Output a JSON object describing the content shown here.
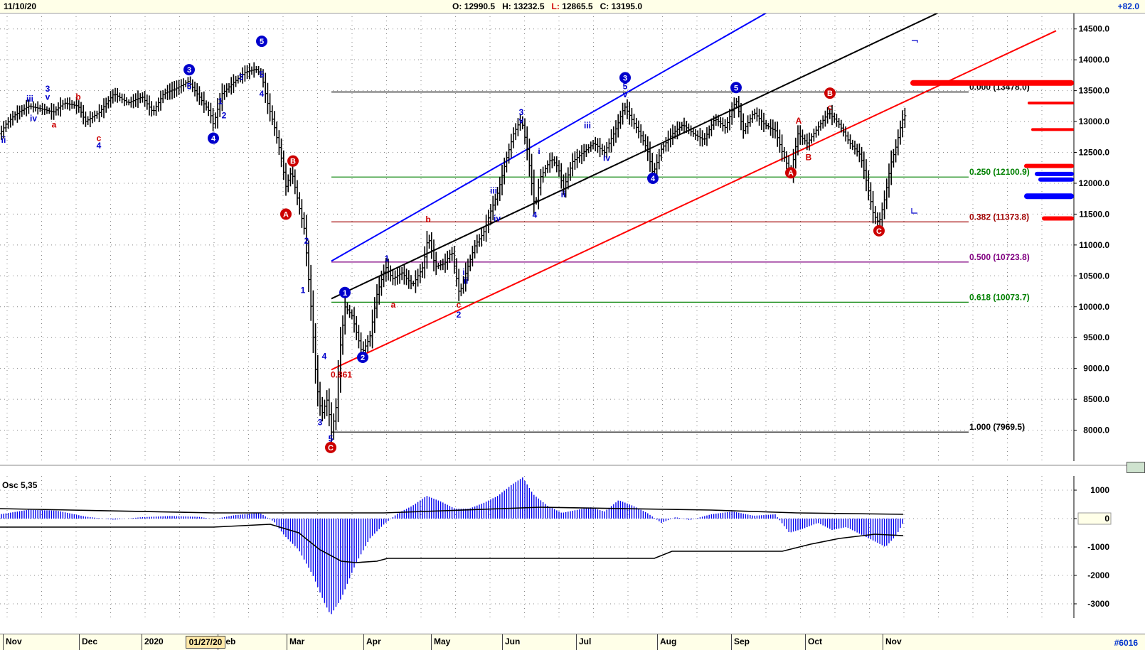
{
  "header": {
    "date": "11/10/20",
    "open_label": "O:",
    "open": "12990.5",
    "high_label": "H:",
    "high": "13232.5",
    "low_label": "L:",
    "low": "12865.5",
    "close_label": "C:",
    "close": "13195.0",
    "change": "+82.0"
  },
  "footer": {
    "months": [
      "Nov",
      "Dec",
      "2020",
      "Feb",
      "Mar",
      "Apr",
      "May",
      "Jun",
      "Jul",
      "Aug",
      "Sep",
      "Oct",
      "Nov"
    ],
    "date_marker": "01/27/20",
    "symbol_id": "#6016"
  },
  "oscillator": {
    "label": "Osc 5,35",
    "ticks": [
      "1000",
      "0",
      "-1000",
      "-2000",
      "-3000"
    ],
    "ylim": [
      -3500,
      1500
    ]
  },
  "chart_data": {
    "type": "ohlc-bar",
    "ylim": [
      7500,
      14750
    ],
    "y_ticks": [
      8000,
      8500,
      9000,
      9500,
      10000,
      10500,
      11000,
      11500,
      12000,
      12500,
      13000,
      13500,
      14000,
      14500
    ],
    "fib_levels": [
      {
        "label": "0.000 (13478.0)",
        "value": 13478.0,
        "color": "#000000"
      },
      {
        "label": "0.250 (12100.9)",
        "value": 12100.9,
        "color": "#008000"
      },
      {
        "label": "0.382 (11373.8)",
        "value": 11373.8,
        "color": "#a00000"
      },
      {
        "label": "0.500 (10723.8)",
        "value": 10723.8,
        "color": "#800080"
      },
      {
        "label": "0.618 (10073.7)",
        "value": 10073.7,
        "color": "#008000"
      },
      {
        "label": "1.000 (7969.5)",
        "value": 7969.5,
        "color": "#000000"
      }
    ],
    "price_path": [
      [
        0,
        12800
      ],
      [
        8,
        12950
      ],
      [
        20,
        13100
      ],
      [
        40,
        13250
      ],
      [
        60,
        13200
      ],
      [
        75,
        13150
      ],
      [
        90,
        13300
      ],
      [
        110,
        13250
      ],
      [
        120,
        13000
      ],
      [
        140,
        13150
      ],
      [
        160,
        13450
      ],
      [
        180,
        13300
      ],
      [
        200,
        13400
      ],
      [
        215,
        13150
      ],
      [
        230,
        13450
      ],
      [
        250,
        13550
      ],
      [
        265,
        13650
      ],
      [
        280,
        13400
      ],
      [
        295,
        13150
      ],
      [
        300,
        12950
      ],
      [
        312,
        13450
      ],
      [
        330,
        13650
      ],
      [
        345,
        13800
      ],
      [
        360,
        13850
      ],
      [
        368,
        13750
      ],
      [
        375,
        13350
      ],
      [
        385,
        12950
      ],
      [
        395,
        12450
      ],
      [
        402,
        11950
      ],
      [
        410,
        12200
      ],
      [
        420,
        11650
      ],
      [
        428,
        11250
      ],
      [
        438,
        9900
      ],
      [
        445,
        8750
      ],
      [
        452,
        8250
      ],
      [
        460,
        8500
      ],
      [
        466,
        7970
      ],
      [
        472,
        8300
      ],
      [
        478,
        9300
      ],
      [
        485,
        10000
      ],
      [
        495,
        9850
      ],
      [
        509,
        9250
      ],
      [
        520,
        9500
      ],
      [
        530,
        10200
      ],
      [
        542,
        10650
      ],
      [
        552,
        10450
      ],
      [
        565,
        10550
      ],
      [
        580,
        10350
      ],
      [
        595,
        10650
      ],
      [
        602,
        11150
      ],
      [
        612,
        10650
      ],
      [
        625,
        10700
      ],
      [
        635,
        10900
      ],
      [
        646,
        10200
      ],
      [
        655,
        10550
      ],
      [
        668,
        11000
      ],
      [
        680,
        11200
      ],
      [
        690,
        11550
      ],
      [
        700,
        11850
      ],
      [
        712,
        12400
      ],
      [
        722,
        12800
      ],
      [
        733,
        13050
      ],
      [
        742,
        12500
      ],
      [
        752,
        11600
      ],
      [
        760,
        12100
      ],
      [
        775,
        12400
      ],
      [
        785,
        12250
      ],
      [
        792,
        11900
      ],
      [
        805,
        12350
      ],
      [
        820,
        12500
      ],
      [
        835,
        12650
      ],
      [
        850,
        12500
      ],
      [
        865,
        12850
      ],
      [
        878,
        13250
      ],
      [
        890,
        13000
      ],
      [
        900,
        12800
      ],
      [
        910,
        12550
      ],
      [
        918,
        12150
      ],
      [
        930,
        12550
      ],
      [
        945,
        12800
      ],
      [
        960,
        12950
      ],
      [
        975,
        12800
      ],
      [
        990,
        12700
      ],
      [
        1005,
        13050
      ],
      [
        1020,
        12900
      ],
      [
        1035,
        13350
      ],
      [
        1045,
        12850
      ],
      [
        1060,
        13150
      ],
      [
        1075,
        12950
      ],
      [
        1090,
        12850
      ],
      [
        1100,
        12500
      ],
      [
        1112,
        12150
      ],
      [
        1122,
        12800
      ],
      [
        1135,
        12650
      ],
      [
        1150,
        12900
      ],
      [
        1165,
        13150
      ],
      [
        1180,
        12950
      ],
      [
        1195,
        12650
      ],
      [
        1210,
        12450
      ],
      [
        1220,
        11950
      ],
      [
        1228,
        11500
      ],
      [
        1236,
        11350
      ],
      [
        1245,
        11800
      ],
      [
        1252,
        12300
      ],
      [
        1260,
        12600
      ],
      [
        1268,
        13000
      ],
      [
        1275,
        13150
      ]
    ],
    "trend_lines": [
      {
        "color": "#0000ff",
        "p1": [
          466,
          10740
        ],
        "p2": [
          1140,
          15170
        ]
      },
      {
        "color": "#000000",
        "p1": [
          466,
          10130
        ],
        "p2": [
          1400,
          15200
        ]
      },
      {
        "color": "#ff0000",
        "p1": [
          466,
          8980
        ],
        "p2": [
          1485,
          14470
        ]
      }
    ],
    "projection_bars": [
      {
        "color": "#ff0000",
        "y": 13625,
        "x1": 1280,
        "x2": 1510,
        "h": 8
      },
      {
        "color": "#ff0000",
        "y": 13300,
        "x1": 1445,
        "x2": 1510,
        "h": 4
      },
      {
        "color": "#ff0000",
        "y": 12870,
        "x1": 1450,
        "x2": 1510,
        "h": 4
      },
      {
        "color": "#ff0000",
        "y": 12280,
        "x1": 1440,
        "x2": 1510,
        "h": 6
      },
      {
        "color": "#0000ff",
        "y": 12150,
        "x1": 1455,
        "x2": 1510,
        "h": 6
      },
      {
        "color": "#0000ff",
        "y": 12060,
        "x1": 1460,
        "x2": 1510,
        "h": 6
      },
      {
        "color": "#0000ff",
        "y": 11790,
        "x1": 1440,
        "x2": 1510,
        "h": 8
      },
      {
        "color": "#ff0000",
        "y": 11430,
        "x1": 1465,
        "x2": 1510,
        "h": 6
      }
    ],
    "wave_labels": [
      {
        "t": "ii",
        "x": 5,
        "y": 12700,
        "c": "#0000cc"
      },
      {
        "t": "iii",
        "x": 42,
        "y": 13370,
        "c": "#0000cc"
      },
      {
        "t": "3",
        "x": 67,
        "y": 13530,
        "c": "#0000cc"
      },
      {
        "t": "v",
        "x": 67,
        "y": 13400,
        "c": "#0000cc"
      },
      {
        "t": "iv",
        "x": 47,
        "y": 13050,
        "c": "#0000cc"
      },
      {
        "t": "a",
        "x": 76,
        "y": 12950,
        "c": "#cc0000"
      },
      {
        "t": "b",
        "x": 110,
        "y": 13400,
        "c": "#cc0000"
      },
      {
        "t": "c",
        "x": 139,
        "y": 12730,
        "c": "#cc0000"
      },
      {
        "t": "4",
        "x": 139,
        "y": 12610,
        "c": "#0000cc"
      },
      {
        "t": "5",
        "x": 266,
        "y": 13570,
        "c": "#0000cc"
      },
      {
        "t": "1",
        "x": 310,
        "y": 13330,
        "c": "#0000cc"
      },
      {
        "t": "2",
        "x": 315,
        "y": 13100,
        "c": "#0000cc"
      },
      {
        "t": "3",
        "x": 339,
        "y": 13720,
        "c": "#0000cc"
      },
      {
        "t": "5",
        "x": 368,
        "y": 13760,
        "c": "#0000cc"
      },
      {
        "t": "4",
        "x": 368,
        "y": 13450,
        "c": "#0000cc"
      },
      {
        "t": "2",
        "x": 431,
        "y": 11070,
        "c": "#0000cc"
      },
      {
        "t": "1",
        "x": 426,
        "y": 10270,
        "c": "#0000cc"
      },
      {
        "t": "4",
        "x": 456,
        "y": 9200,
        "c": "#0000cc"
      },
      {
        "t": "3",
        "x": 450,
        "y": 8130,
        "c": "#0000cc"
      },
      {
        "t": "5",
        "x": 465,
        "y": 7860,
        "c": "#0000cc"
      },
      {
        "t": "0.861",
        "x": 480,
        "y": 8900,
        "c": "#cc0000"
      },
      {
        "t": "1",
        "x": 544,
        "y": 10780,
        "c": "#0000cc"
      },
      {
        "t": "a",
        "x": 553,
        "y": 10030,
        "c": "#cc0000"
      },
      {
        "t": "b",
        "x": 602,
        "y": 11410,
        "c": "#cc0000"
      },
      {
        "t": "c",
        "x": 645,
        "y": 10030,
        "c": "#cc0000"
      },
      {
        "t": "2",
        "x": 645,
        "y": 9870,
        "c": "#0000cc"
      },
      {
        "t": "i",
        "x": 652,
        "y": 10560,
        "c": "#0000cc"
      },
      {
        "t": "ii",
        "x": 655,
        "y": 10420,
        "c": "#0000cc"
      },
      {
        "t": "iii",
        "x": 694,
        "y": 11880,
        "c": "#0000cc"
      },
      {
        "t": "iv",
        "x": 699,
        "y": 11430,
        "c": "#0000cc"
      },
      {
        "t": "3",
        "x": 733,
        "y": 13150,
        "c": "#0000cc"
      },
      {
        "t": "v",
        "x": 733,
        "y": 13020,
        "c": "#0000cc"
      },
      {
        "t": "i",
        "x": 758,
        "y": 12520,
        "c": "#0000cc"
      },
      {
        "t": "4",
        "x": 752,
        "y": 11490,
        "c": "#0000cc"
      },
      {
        "t": "ii",
        "x": 792,
        "y": 11820,
        "c": "#0000cc"
      },
      {
        "t": "iii",
        "x": 826,
        "y": 12940,
        "c": "#0000cc"
      },
      {
        "t": "iv",
        "x": 853,
        "y": 12410,
        "c": "#0000cc"
      },
      {
        "t": "5",
        "x": 879,
        "y": 13570,
        "c": "#0000cc"
      },
      {
        "t": "v",
        "x": 879,
        "y": 13440,
        "c": "#0000cc"
      },
      {
        "t": "A",
        "x": 1123,
        "y": 13010,
        "c": "#cc0000"
      },
      {
        "t": "B",
        "x": 1137,
        "y": 12420,
        "c": "#cc0000"
      },
      {
        "t": "c",
        "x": 1167,
        "y": 13230,
        "c": "#cc0000"
      }
    ],
    "circle_labels": [
      {
        "t": "3",
        "x": 266,
        "y": 13840,
        "c": "#0000cc"
      },
      {
        "t": "4",
        "x": 300,
        "y": 12730,
        "c": "#0000cc"
      },
      {
        "t": "5",
        "x": 368,
        "y": 14300,
        "c": "#0000cc"
      },
      {
        "t": "B",
        "x": 412,
        "y": 12360,
        "c": "#cc0000"
      },
      {
        "t": "A",
        "x": 402,
        "y": 11500,
        "c": "#cc0000"
      },
      {
        "t": "C",
        "x": 465,
        "y": 7720,
        "c": "#cc0000"
      },
      {
        "t": "1",
        "x": 485,
        "y": 10230,
        "c": "#0000cc"
      },
      {
        "t": "2",
        "x": 510,
        "y": 9180,
        "c": "#0000cc"
      },
      {
        "t": "3",
        "x": 879,
        "y": 13710,
        "c": "#0000cc"
      },
      {
        "t": "4",
        "x": 918,
        "y": 12080,
        "c": "#0000cc"
      },
      {
        "t": "5",
        "x": 1035,
        "y": 13550,
        "c": "#0000cc"
      },
      {
        "t": "B",
        "x": 1167,
        "y": 13460,
        "c": "#cc0000"
      },
      {
        "t": "A",
        "x": 1112,
        "y": 12170,
        "c": "#cc0000"
      },
      {
        "t": "C",
        "x": 1236,
        "y": 11230,
        "c": "#cc0000"
      }
    ],
    "osc_hist": [
      [
        0,
        150
      ],
      [
        40,
        310
      ],
      [
        80,
        280
      ],
      [
        120,
        70
      ],
      [
        160,
        -40
      ],
      [
        200,
        50
      ],
      [
        240,
        90
      ],
      [
        280,
        60
      ],
      [
        300,
        -20
      ],
      [
        330,
        120
      ],
      [
        365,
        200
      ],
      [
        385,
        -100
      ],
      [
        400,
        -600
      ],
      [
        420,
        -1100
      ],
      [
        440,
        -2000
      ],
      [
        455,
        -2900
      ],
      [
        465,
        -3400
      ],
      [
        480,
        -2800
      ],
      [
        500,
        -1600
      ],
      [
        520,
        -700
      ],
      [
        540,
        -200
      ],
      [
        560,
        200
      ],
      [
        580,
        450
      ],
      [
        600,
        800
      ],
      [
        620,
        600
      ],
      [
        640,
        350
      ],
      [
        660,
        350
      ],
      [
        680,
        550
      ],
      [
        700,
        800
      ],
      [
        720,
        1200
      ],
      [
        735,
        1450
      ],
      [
        750,
        850
      ],
      [
        770,
        450
      ],
      [
        790,
        200
      ],
      [
        810,
        300
      ],
      [
        830,
        400
      ],
      [
        850,
        250
      ],
      [
        870,
        650
      ],
      [
        890,
        450
      ],
      [
        910,
        200
      ],
      [
        930,
        -150
      ],
      [
        950,
        50
      ],
      [
        970,
        -50
      ],
      [
        1000,
        150
      ],
      [
        1030,
        250
      ],
      [
        1060,
        100
      ],
      [
        1090,
        150
      ],
      [
        1110,
        -500
      ],
      [
        1130,
        -350
      ],
      [
        1150,
        -150
      ],
      [
        1170,
        -400
      ],
      [
        1190,
        -300
      ],
      [
        1210,
        -550
      ],
      [
        1230,
        -800
      ],
      [
        1245,
        -1000
      ],
      [
        1260,
        -600
      ],
      [
        1270,
        -150
      ]
    ],
    "osc_signal": [
      [
        0,
        -300
      ],
      [
        300,
        -300
      ],
      [
        380,
        -200
      ],
      [
        420,
        -500
      ],
      [
        450,
        -1100
      ],
      [
        480,
        -1500
      ],
      [
        500,
        -1550
      ],
      [
        530,
        -1500
      ],
      [
        545,
        -1400
      ],
      [
        920,
        -1400
      ],
      [
        945,
        -1150
      ],
      [
        1100,
        -1150
      ],
      [
        1140,
        -900
      ],
      [
        1180,
        -700
      ],
      [
        1230,
        -550
      ],
      [
        1270,
        -600
      ]
    ],
    "osc_trend": [
      [
        0,
        350
      ],
      [
        100,
        300
      ],
      [
        300,
        200
      ],
      [
        540,
        200
      ],
      [
        760,
        400
      ],
      [
        1000,
        300
      ],
      [
        1120,
        200
      ],
      [
        1270,
        150
      ]
    ]
  }
}
